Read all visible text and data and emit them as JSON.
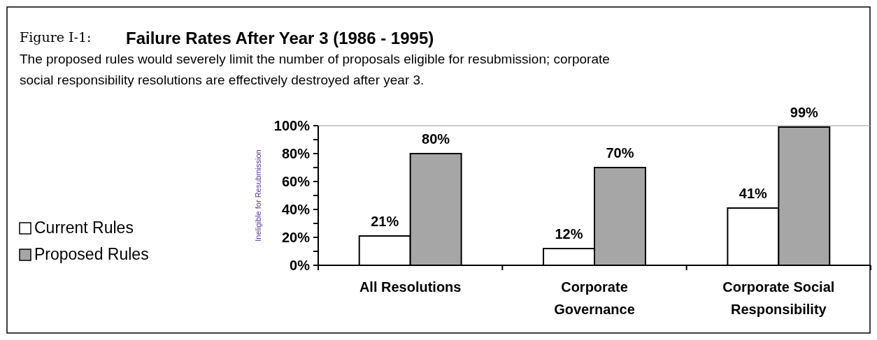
{
  "chart_data": {
    "type": "bar",
    "title": "Failure Rates After Year 3 (1986 - 1995)",
    "subtitle": "The proposed rules would severely limit the number of proposals eligible for resubmission; corporate social responsibility resolutions are effectively destroyed after year 3.",
    "annotations": [
      "Figure I-1:"
    ],
    "ylabel": "Ineligible for Resubmission",
    "categories": [
      "All Resolutions",
      "Corporate Governance",
      "Corporate Social Responsibility"
    ],
    "series": [
      {
        "name": "Current Rules",
        "color": "#ffffff",
        "values": [
          21,
          12,
          41
        ],
        "value_labels": [
          "21%",
          "12%",
          "41%"
        ]
      },
      {
        "name": "Proposed Rules",
        "color": "#a6a6a6",
        "values": [
          80,
          70,
          99
        ],
        "value_labels": [
          "80%",
          "70%",
          "99%"
        ]
      }
    ],
    "ylim": [
      0,
      100
    ],
    "yticks": [
      {
        "value": 0,
        "label": "0%"
      },
      {
        "value": 10,
        "label": null
      },
      {
        "value": 20,
        "label": "20%"
      },
      {
        "value": 30,
        "label": null
      },
      {
        "value": 40,
        "label": "40%"
      },
      {
        "value": 50,
        "label": null
      },
      {
        "value": 60,
        "label": "60%"
      },
      {
        "value": 70,
        "label": null
      },
      {
        "value": 80,
        "label": "80%"
      },
      {
        "value": 90,
        "label": null
      },
      {
        "value": 100,
        "label": "100%"
      }
    ],
    "grid": false,
    "legend": "left"
  }
}
